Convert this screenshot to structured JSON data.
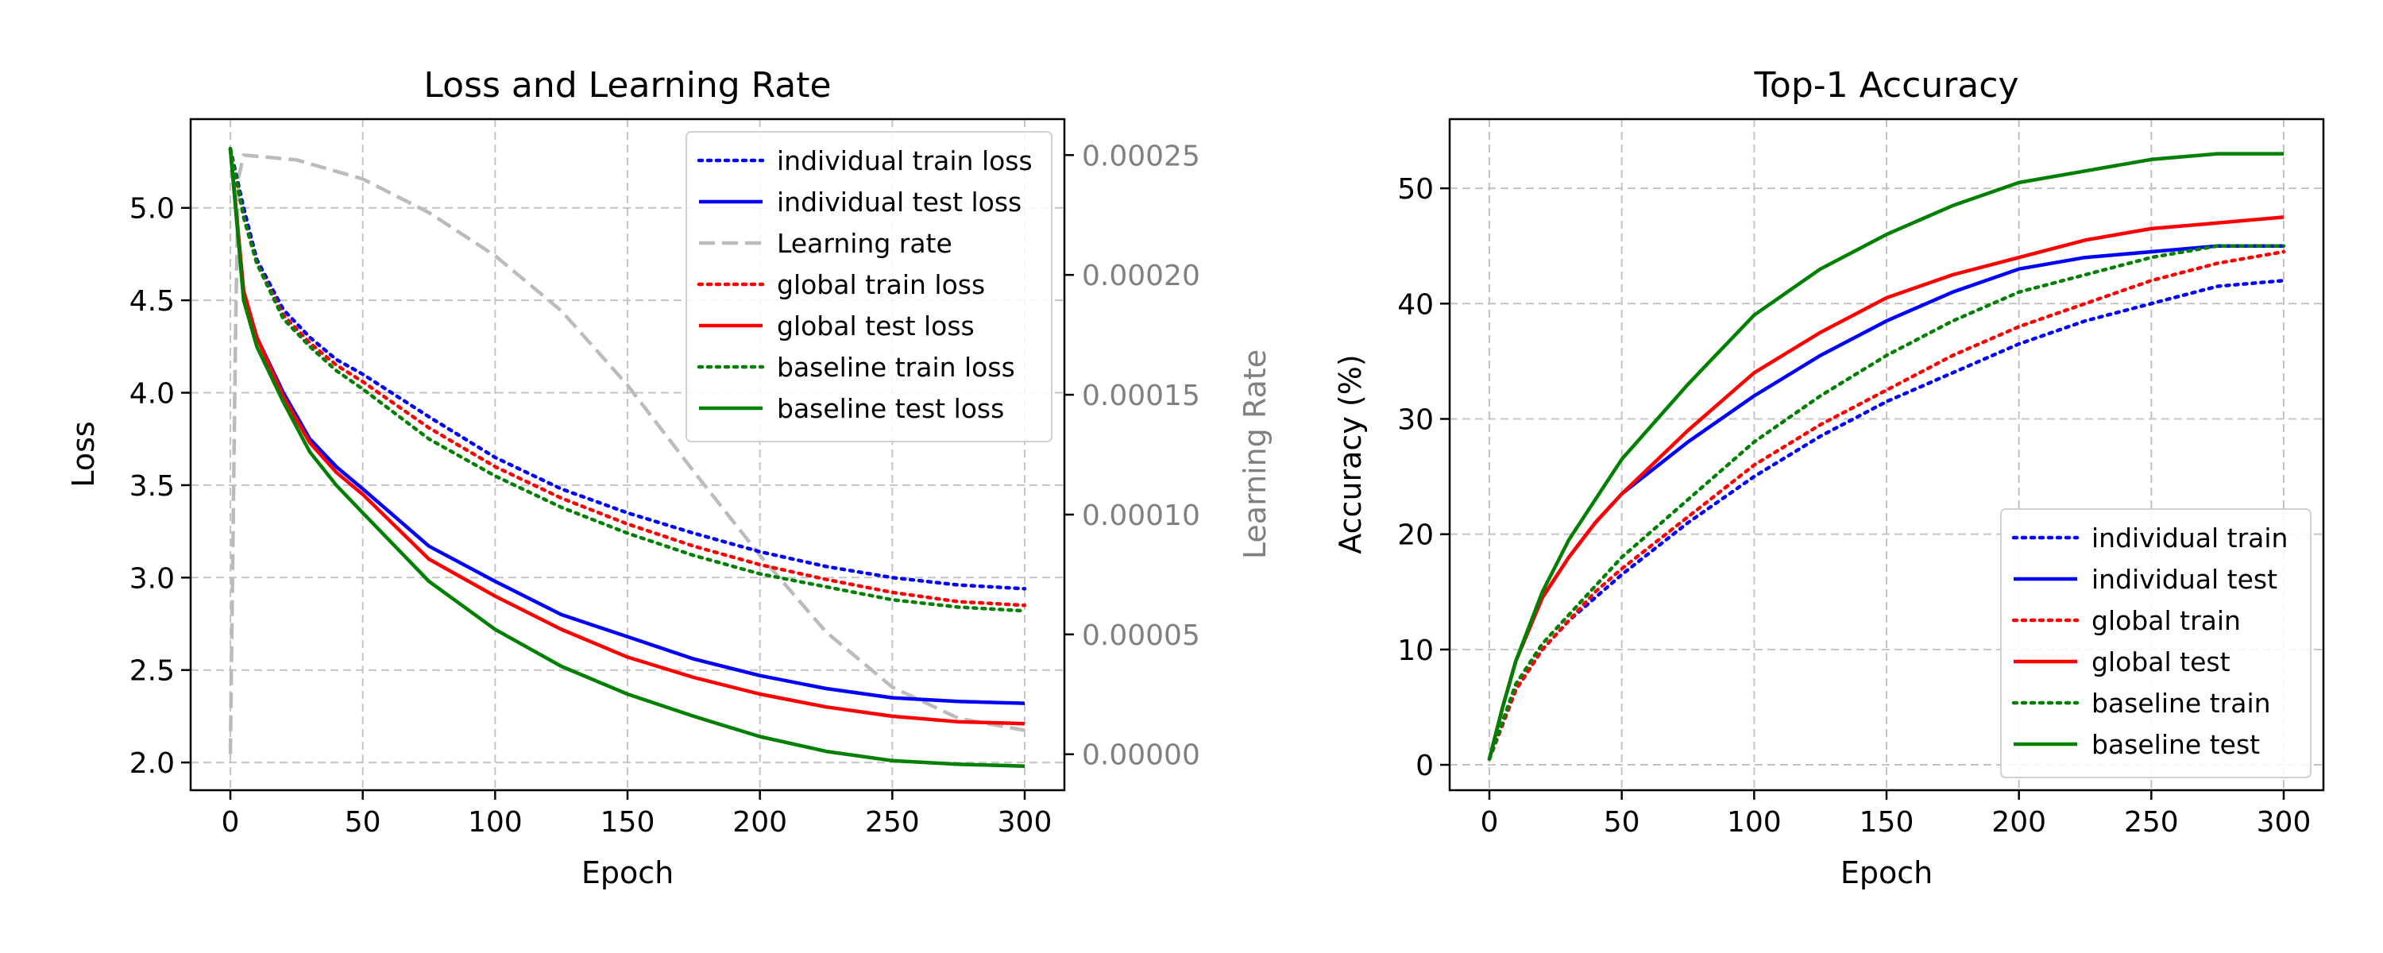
{
  "chart_data": [
    {
      "type": "line",
      "title": "Loss and Learning Rate",
      "xlabel": "Epoch",
      "ylabel": "Loss",
      "y2label": "Learning Rate",
      "xlim": [
        -15,
        315
      ],
      "ylim": [
        1.85,
        5.48
      ],
      "y2lim": [
        -1.5e-05,
        0.000265
      ],
      "xticks": [
        0,
        50,
        100,
        150,
        200,
        250,
        300
      ],
      "yticks": [
        2.0,
        2.5,
        3.0,
        3.5,
        4.0,
        4.5,
        5.0
      ],
      "ytick_labels": [
        "2.0",
        "2.5",
        "3.0",
        "3.5",
        "4.0",
        "4.5",
        "5.0"
      ],
      "y2ticks": [
        0,
        5e-05,
        0.0001,
        0.00015,
        0.0002,
        0.00025
      ],
      "y2tick_labels": [
        "0.00000",
        "0.00005",
        "0.00010",
        "0.00015",
        "0.00020",
        "0.00025"
      ],
      "grid": true,
      "legend_position": "upper right",
      "x": [
        0,
        5,
        10,
        20,
        30,
        40,
        50,
        75,
        100,
        125,
        150,
        175,
        200,
        225,
        250,
        275,
        300
      ],
      "series": [
        {
          "name": "individual train loss",
          "axis": "left",
          "color": "#0000ff",
          "dash": "dotted",
          "values": [
            5.32,
            5.0,
            4.72,
            4.45,
            4.3,
            4.18,
            4.1,
            3.87,
            3.65,
            3.48,
            3.35,
            3.24,
            3.14,
            3.06,
            3.0,
            2.96,
            2.94
          ]
        },
        {
          "name": "individual test loss",
          "axis": "left",
          "color": "#0000ff",
          "dash": "solid",
          "values": [
            5.32,
            4.55,
            4.3,
            4.0,
            3.75,
            3.6,
            3.48,
            3.17,
            2.98,
            2.8,
            2.68,
            2.56,
            2.47,
            2.4,
            2.35,
            2.33,
            2.32
          ]
        },
        {
          "name": "global train loss",
          "axis": "left",
          "color": "#ff0000",
          "dash": "dotted",
          "values": [
            5.32,
            4.95,
            4.7,
            4.42,
            4.27,
            4.15,
            4.06,
            3.81,
            3.6,
            3.43,
            3.29,
            3.17,
            3.07,
            2.99,
            2.92,
            2.87,
            2.85
          ]
        },
        {
          "name": "global test loss",
          "axis": "left",
          "color": "#ff0000",
          "dash": "solid",
          "values": [
            5.32,
            4.55,
            4.3,
            3.98,
            3.73,
            3.57,
            3.45,
            3.1,
            2.9,
            2.72,
            2.57,
            2.46,
            2.37,
            2.3,
            2.25,
            2.22,
            2.21
          ]
        },
        {
          "name": "baseline train loss",
          "axis": "left",
          "color": "#008000",
          "dash": "dotted",
          "values": [
            5.32,
            4.95,
            4.7,
            4.4,
            4.25,
            4.12,
            4.02,
            3.75,
            3.55,
            3.38,
            3.24,
            3.12,
            3.02,
            2.95,
            2.88,
            2.84,
            2.82
          ]
        },
        {
          "name": "baseline test loss",
          "axis": "left",
          "color": "#008000",
          "dash": "solid",
          "values": [
            5.32,
            4.5,
            4.25,
            3.95,
            3.68,
            3.5,
            3.35,
            2.98,
            2.72,
            2.52,
            2.37,
            2.25,
            2.14,
            2.06,
            2.01,
            1.99,
            1.98
          ]
        },
        {
          "name": "Learning rate",
          "axis": "right",
          "color": "#bbbbbb",
          "dash": "dashed",
          "x": [
            0,
            2,
            3,
            5,
            25,
            50,
            75,
            100,
            125,
            150,
            175,
            200,
            225,
            250,
            275,
            300
          ],
          "values": [
            0,
            0.00018,
            0.00024,
            0.00025,
            0.000248,
            0.00024,
            0.000226,
            0.000208,
            0.000185,
            0.000154,
            0.000118,
            8.3e-05,
            5.1e-05,
            2.8e-05,
            1.5e-05,
            1e-05
          ]
        }
      ]
    },
    {
      "type": "line",
      "title": "Top-1 Accuracy",
      "xlabel": "Epoch",
      "ylabel": "Accuracy (%)",
      "xlim": [
        -15,
        315
      ],
      "ylim": [
        -2.2,
        56
      ],
      "xticks": [
        0,
        50,
        100,
        150,
        200,
        250,
        300
      ],
      "yticks": [
        0,
        10,
        20,
        30,
        40,
        50
      ],
      "ytick_labels": [
        "0",
        "10",
        "20",
        "30",
        "40",
        "50"
      ],
      "grid": true,
      "legend_position": "lower right",
      "x": [
        0,
        5,
        10,
        20,
        30,
        40,
        50,
        75,
        100,
        125,
        150,
        175,
        200,
        225,
        250,
        275,
        300
      ],
      "series": [
        {
          "name": "individual train",
          "color": "#0000ff",
          "dash": "dotted",
          "values": [
            0.5,
            3.5,
            6.5,
            10,
            12.5,
            14.5,
            16.5,
            21,
            25,
            28.5,
            31.5,
            34,
            36.5,
            38.5,
            40,
            41.5,
            42
          ]
        },
        {
          "name": "individual test",
          "color": "#0000ff",
          "dash": "solid",
          "values": [
            0.5,
            5,
            9,
            14.5,
            18,
            21,
            23.5,
            28,
            32,
            35.5,
            38.5,
            41,
            43,
            44,
            44.5,
            45,
            45
          ]
        },
        {
          "name": "global train",
          "color": "#ff0000",
          "dash": "dotted",
          "values": [
            0.5,
            3.5,
            6.5,
            10,
            12.5,
            15,
            17,
            21.5,
            26,
            29.5,
            32.5,
            35.5,
            38,
            40,
            42,
            43.5,
            44.5
          ]
        },
        {
          "name": "global test",
          "color": "#ff0000",
          "dash": "solid",
          "values": [
            0.5,
            5,
            9,
            14.5,
            18,
            21,
            23.5,
            29,
            34,
            37.5,
            40.5,
            42.5,
            44,
            45.5,
            46.5,
            47,
            47.5
          ]
        },
        {
          "name": "baseline train",
          "color": "#008000",
          "dash": "dotted",
          "values": [
            0.5,
            3.8,
            7,
            10.5,
            13,
            15.5,
            18,
            23,
            28,
            32,
            35.5,
            38.5,
            41,
            42.5,
            44,
            45,
            45
          ]
        },
        {
          "name": "baseline test",
          "color": "#008000",
          "dash": "solid",
          "values": [
            0.5,
            5,
            9,
            15,
            19.5,
            23,
            26.5,
            33,
            39,
            43,
            46,
            48.5,
            50.5,
            51.5,
            52.5,
            53,
            53
          ]
        }
      ]
    }
  ]
}
